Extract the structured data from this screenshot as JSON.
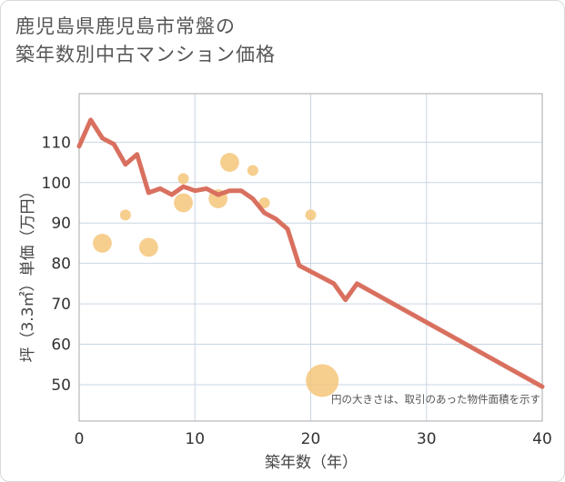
{
  "chart_data": {
    "type": "scatter+line",
    "title_lines": [
      "鹿児島県鹿児島市常盤の",
      "築年数別中古マンション価格"
    ],
    "xlabel": "築年数（年）",
    "ylabel": "坪（3.3㎡）単価（万円）",
    "xlim": [
      0,
      40
    ],
    "ylim": [
      41,
      122
    ],
    "xticks": [
      0,
      10,
      20,
      30,
      40
    ],
    "yticks": [
      50,
      60,
      70,
      80,
      90,
      100,
      110
    ],
    "grid": true,
    "note": "円の大きさは、取引のあった物件面積を示す",
    "colors": {
      "line": "#d9705f",
      "bubble": "#f5c57a",
      "grid": "#c9d6e3",
      "plot_border": "#aaaaaa"
    },
    "line": {
      "x": [
        0,
        1,
        2,
        3,
        4,
        5,
        6,
        7,
        8,
        9,
        10,
        11,
        12,
        13,
        14,
        15,
        16,
        17,
        18,
        19,
        20,
        21,
        22,
        23,
        24,
        40
      ],
      "y": [
        109,
        115.5,
        111,
        109.5,
        104.5,
        107,
        97.5,
        98.5,
        97,
        99,
        98,
        98.5,
        97,
        98,
        98,
        96,
        92.5,
        91,
        88.5,
        79.5,
        78,
        76.5,
        75,
        71,
        75,
        49.5
      ]
    },
    "bubbles": [
      {
        "x": 2,
        "y": 85,
        "size": 3
      },
      {
        "x": 4,
        "y": 92,
        "size": 1
      },
      {
        "x": 6,
        "y": 84,
        "size": 3
      },
      {
        "x": 9,
        "y": 101,
        "size": 1
      },
      {
        "x": 9,
        "y": 95,
        "size": 3
      },
      {
        "x": 12,
        "y": 96,
        "size": 3
      },
      {
        "x": 13,
        "y": 105,
        "size": 3
      },
      {
        "x": 15,
        "y": 103,
        "size": 1
      },
      {
        "x": 16,
        "y": 95,
        "size": 1
      },
      {
        "x": 20,
        "y": 92,
        "size": 1
      },
      {
        "x": 21,
        "y": 51,
        "size": 9
      }
    ]
  }
}
